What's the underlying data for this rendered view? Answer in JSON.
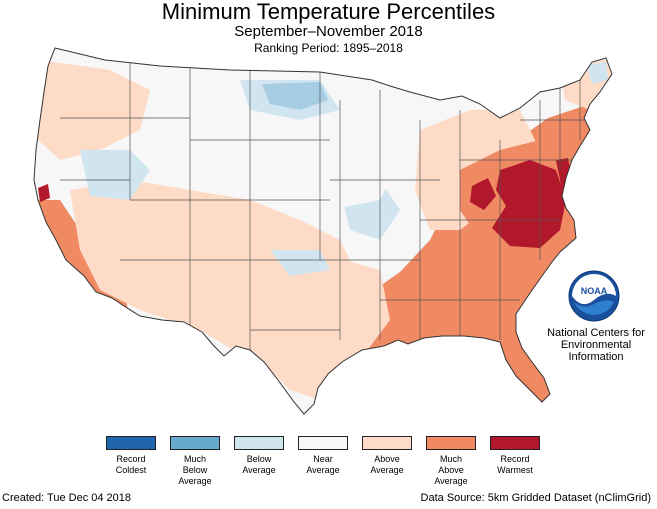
{
  "header": {
    "title": "Minimum Temperature Percentiles",
    "subtitle": "September–November 2018",
    "ranking_period": "Ranking Period: 1895–2018"
  },
  "agency": {
    "logo_text": "NOAA",
    "name_line1": "National Centers for",
    "name_line2": "Environmental",
    "name_line3": "Information"
  },
  "legend": [
    {
      "line1": "Record",
      "line2": "Coldest",
      "line3": "",
      "color": "#2166ac"
    },
    {
      "line1": "Much",
      "line2": "Below",
      "line3": "Average",
      "color": "#67a9cf"
    },
    {
      "line1": "Below",
      "line2": "Average",
      "line3": "",
      "color": "#d1e5f0"
    },
    {
      "line1": "Near",
      "line2": "Average",
      "line3": "",
      "color": "#f7f7f7"
    },
    {
      "line1": "Above",
      "line2": "Average",
      "line3": "",
      "color": "#fddbc7"
    },
    {
      "line1": "Much",
      "line2": "Above",
      "line3": "Average",
      "color": "#ef8a62"
    },
    {
      "line1": "Record",
      "line2": "Warmest",
      "line3": "",
      "color": "#b2182b"
    }
  ],
  "footer": {
    "created": "Created: Tue Dec 04 2018",
    "source": "Data Source: 5km Gridded Dataset (nClimGrid)"
  },
  "colors": {
    "record_coldest": "#2166ac",
    "much_below": "#67a9cf",
    "below": "#d1e5f0",
    "near": "#f7f7f7",
    "above": "#fddbc7",
    "much_above": "#ef8a62",
    "record_warmest": "#b2182b",
    "border": "#333333"
  }
}
